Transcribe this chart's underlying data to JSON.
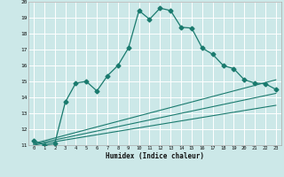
{
  "xlabel": "Humidex (Indice chaleur)",
  "bg_color": "#cce8e8",
  "grid_color": "#ffffff",
  "line_color": "#1a7a6e",
  "xlim": [
    -0.5,
    23.5
  ],
  "ylim": [
    11,
    20
  ],
  "xticks": [
    0,
    1,
    2,
    3,
    4,
    5,
    6,
    7,
    8,
    9,
    10,
    11,
    12,
    13,
    14,
    15,
    16,
    17,
    18,
    19,
    20,
    21,
    22,
    23
  ],
  "yticks": [
    11,
    12,
    13,
    14,
    15,
    16,
    17,
    18,
    19,
    20
  ],
  "series1_x": [
    0,
    1,
    2,
    3,
    4,
    5,
    6,
    7,
    8,
    9,
    10,
    11,
    12,
    13,
    14,
    15,
    16,
    17,
    18,
    19,
    20,
    21,
    22,
    23
  ],
  "series1_y": [
    11.3,
    11.0,
    11.1,
    13.7,
    14.9,
    15.0,
    14.4,
    15.35,
    16.0,
    17.1,
    19.45,
    18.9,
    19.6,
    19.45,
    18.4,
    18.35,
    17.1,
    16.7,
    16.0,
    15.8,
    15.1,
    14.9,
    14.85,
    14.5
  ],
  "series2_x": [
    0,
    23
  ],
  "series2_y": [
    11.1,
    15.1
  ],
  "series3_x": [
    0,
    23
  ],
  "series3_y": [
    11.05,
    14.25
  ],
  "series4_x": [
    0,
    23
  ],
  "series4_y": [
    11.0,
    13.5
  ]
}
